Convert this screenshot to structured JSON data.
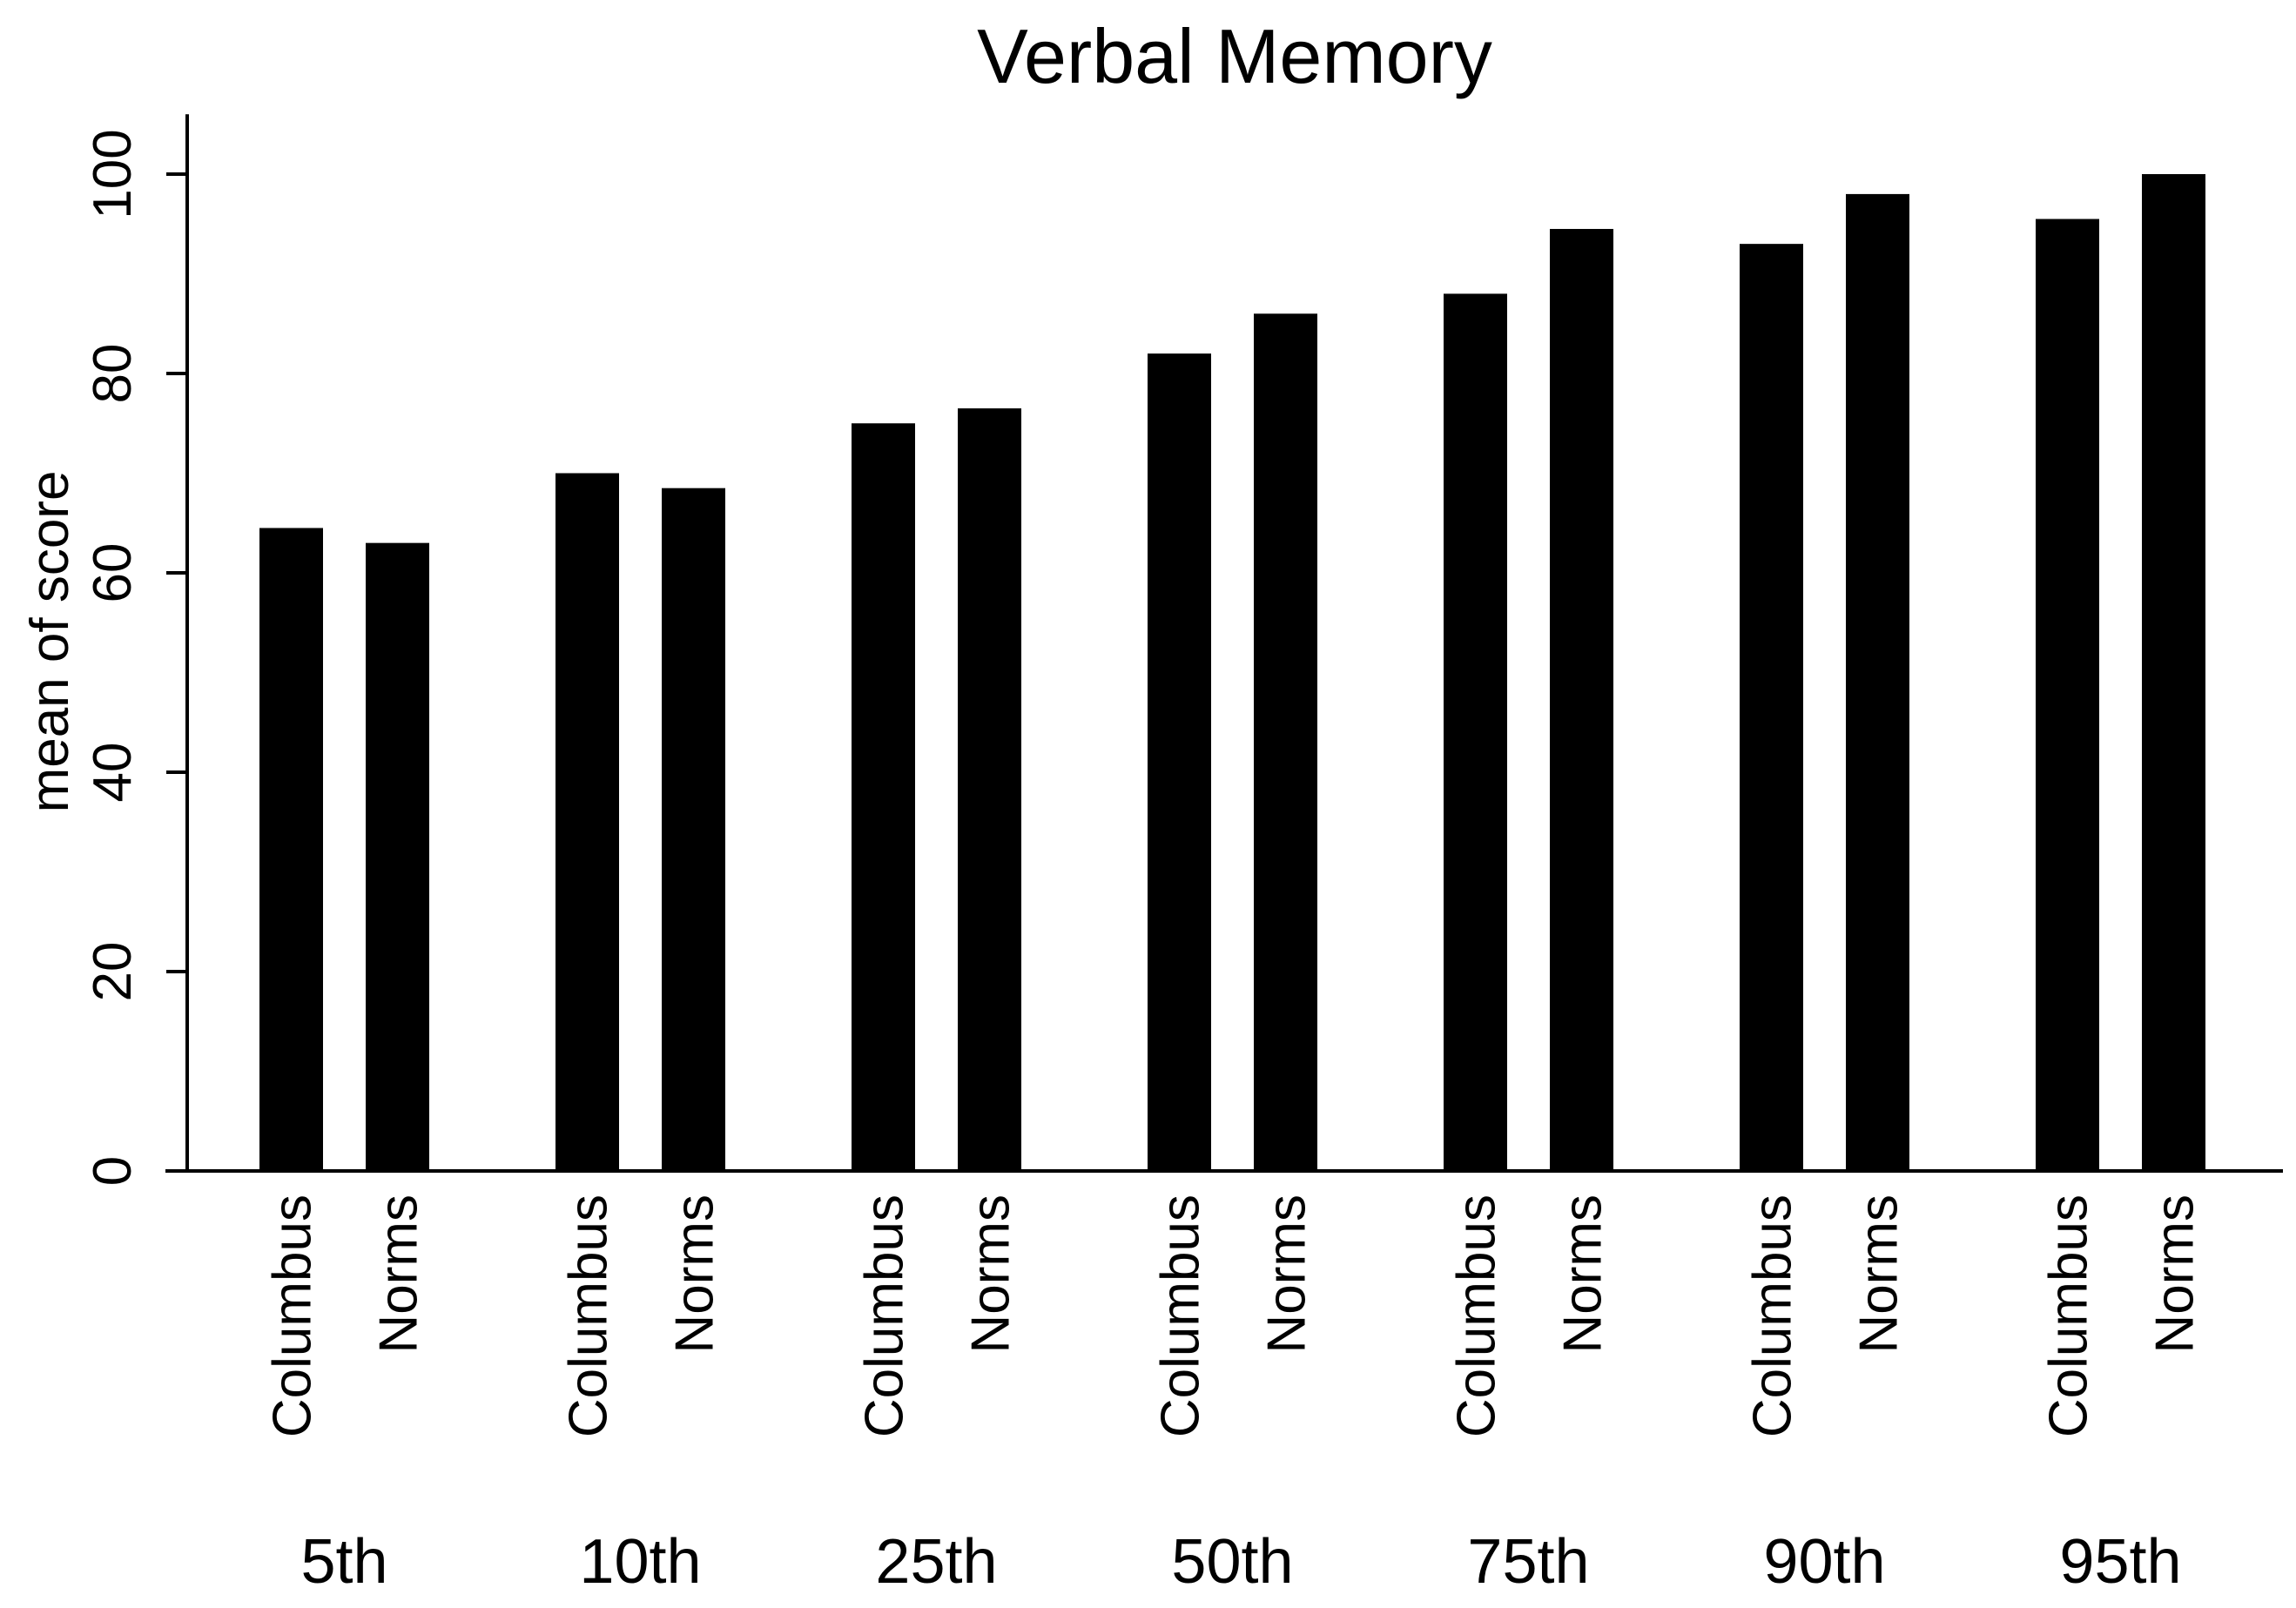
{
  "chart_data": {
    "type": "bar",
    "title": "Verbal Memory",
    "xlabel": "",
    "ylabel": "mean of score",
    "ylim": [
      0,
      106
    ],
    "y_ticks": [
      0,
      20,
      40,
      60,
      80,
      100
    ],
    "grid": false,
    "legend": "none",
    "bar_color": "#000000",
    "groups": [
      {
        "label": "5th",
        "bars": [
          {
            "label": "Columbus",
            "value": 64.5
          },
          {
            "label": "Norms",
            "value": 63
          }
        ]
      },
      {
        "label": "10th",
        "bars": [
          {
            "label": "Columbus",
            "value": 70
          },
          {
            "label": "Norms",
            "value": 68.5
          }
        ]
      },
      {
        "label": "25th",
        "bars": [
          {
            "label": "Columbus",
            "value": 75
          },
          {
            "label": "Norms",
            "value": 76.5
          }
        ]
      },
      {
        "label": "50th",
        "bars": [
          {
            "label": "Columbus",
            "value": 82
          },
          {
            "label": "Norms",
            "value": 86
          }
        ]
      },
      {
        "label": "75th",
        "bars": [
          {
            "label": "Columbus",
            "value": 88
          },
          {
            "label": "Norms",
            "value": 94.5
          }
        ]
      },
      {
        "label": "90th",
        "bars": [
          {
            "label": "Columbus",
            "value": 93
          },
          {
            "label": "Norms",
            "value": 98
          }
        ]
      },
      {
        "label": "95th",
        "bars": [
          {
            "label": "Columbus",
            "value": 95.5
          },
          {
            "label": "Norms",
            "value": 100
          }
        ]
      }
    ]
  }
}
